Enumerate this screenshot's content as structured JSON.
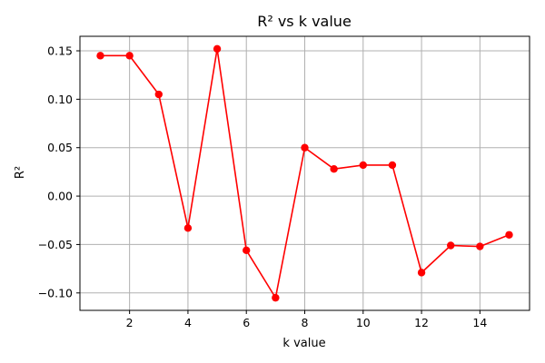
{
  "chart_data": {
    "type": "line",
    "title": "R² vs k value",
    "xlabel": "k value",
    "ylabel": "R²",
    "xlim": [
      0.3,
      15.7
    ],
    "ylim": [
      -0.118,
      0.165
    ],
    "xticks": [
      2,
      4,
      6,
      8,
      10,
      12,
      14
    ],
    "yticks": [
      -0.1,
      -0.05,
      0.0,
      0.05,
      0.1,
      0.15
    ],
    "xtick_labels": [
      "2",
      "4",
      "6",
      "8",
      "10",
      "12",
      "14"
    ],
    "ytick_labels": [
      "−0.10",
      "−0.05",
      "0.00",
      "0.05",
      "0.10",
      "0.15"
    ],
    "grid": true,
    "series": [
      {
        "color": "#ff0000",
        "marker": "circle",
        "x": [
          1,
          2,
          3,
          4,
          5,
          6,
          7,
          8,
          9,
          10,
          11,
          12,
          13,
          14,
          15
        ],
        "y": [
          0.145,
          0.145,
          0.105,
          -0.033,
          0.152,
          -0.056,
          -0.105,
          0.05,
          0.028,
          0.032,
          0.032,
          -0.079,
          -0.051,
          -0.052,
          -0.04
        ]
      }
    ]
  }
}
